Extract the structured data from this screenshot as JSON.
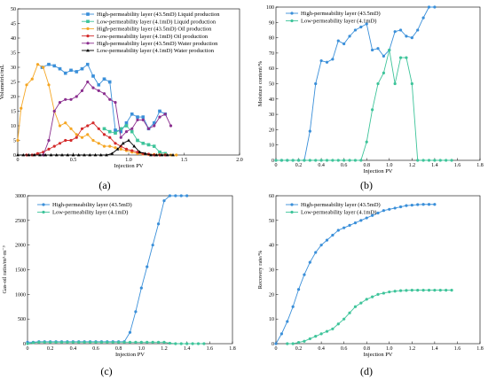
{
  "chart_data": [
    {
      "id": "a",
      "panel_label": "(a)",
      "type": "line",
      "xlabel": "Injection PV",
      "ylabel": "Volumetric/mL",
      "xlim": [
        0,
        2.0
      ],
      "ylim": [
        0,
        50
      ],
      "xticks": [
        0,
        0.5,
        1.0,
        1.5,
        2.0
      ],
      "xtick_labels": [
        "0",
        "0.5",
        "1.0",
        "1.5",
        "2.0"
      ],
      "yticks": [
        0,
        5,
        10,
        15,
        20,
        25,
        30,
        35,
        40,
        45,
        50
      ],
      "ytick_labels": [
        "0",
        "5",
        "10",
        "15",
        "20",
        "25",
        "30",
        "35",
        "40",
        "45",
        "50"
      ],
      "legend_position": "top-right",
      "series": [
        {
          "name": "High-permeability layer (43.5mD) Liquid production",
          "color": "#3a8fd9",
          "marker": "square",
          "x": [
            0.22,
            0.28,
            0.33,
            0.38,
            0.43,
            0.48,
            0.53,
            0.58,
            0.63,
            0.68,
            0.73,
            0.78,
            0.83,
            0.88,
            0.93,
            0.98,
            1.03,
            1.08,
            1.13,
            1.18,
            1.23,
            1.28,
            1.33
          ],
          "y": [
            30,
            31,
            30.5,
            29.5,
            28,
            29,
            28.5,
            29.5,
            31,
            27,
            24,
            26,
            25,
            8.5,
            8,
            11,
            14,
            13,
            13,
            9,
            11,
            15,
            14
          ]
        },
        {
          "name": "Low-permeability layer (4.1mD) Liquid production",
          "color": "#3ec49a",
          "marker": "square",
          "x": [
            0.78,
            0.83,
            0.88,
            0.93,
            0.98,
            1.03,
            1.08,
            1.13,
            1.18,
            1.23,
            1.28,
            1.33
          ],
          "y": [
            9,
            8,
            7.5,
            9,
            10,
            8,
            5,
            4,
            3.5,
            3,
            1,
            0.5
          ]
        },
        {
          "name": "High-permeability layer (43.5mD) Oil production",
          "color": "#f5a623",
          "marker": "circle",
          "x": [
            0.0,
            0.03,
            0.08,
            0.13,
            0.18,
            0.23,
            0.28,
            0.33,
            0.38,
            0.43,
            0.48,
            0.53,
            0.58,
            0.63,
            0.68,
            0.73,
            0.78,
            0.83,
            0.88,
            0.93,
            0.98,
            1.03,
            1.08,
            1.13,
            1.18,
            1.23,
            1.28,
            1.33,
            1.38,
            1.43
          ],
          "y": [
            5,
            16,
            24,
            26,
            31,
            30,
            24,
            15,
            10,
            11,
            9,
            7,
            6,
            7,
            5,
            4,
            3,
            3,
            2.5,
            2,
            1.5,
            1,
            0.5,
            0.3,
            0.2,
            0.2,
            0.1,
            0.1,
            0,
            0
          ]
        },
        {
          "name": "Low-permeability layer (4.1mD) Oil production",
          "color": "#d42b2b",
          "marker": "circle",
          "x": [
            0.08,
            0.13,
            0.18,
            0.23,
            0.28,
            0.33,
            0.38,
            0.43,
            0.48,
            0.53,
            0.58,
            0.63,
            0.68,
            0.73,
            0.78,
            0.83,
            0.88,
            0.93,
            0.98,
            1.03,
            1.08,
            1.13,
            1.18,
            1.23,
            1.28,
            1.33
          ],
          "y": [
            0,
            0,
            0.5,
            1,
            2,
            3,
            4,
            5,
            5,
            6,
            9,
            10,
            11,
            9,
            7,
            6,
            4,
            3,
            2,
            1.5,
            1,
            0.5,
            0.3,
            0,
            0,
            0
          ]
        },
        {
          "name": "High-permeability layer (43.5mD) Water production",
          "color": "#8b2f8f",
          "marker": "circle",
          "x": [
            0.23,
            0.28,
            0.33,
            0.38,
            0.43,
            0.48,
            0.53,
            0.58,
            0.63,
            0.68,
            0.73,
            0.78,
            0.83,
            0.88,
            0.93,
            0.98,
            1.03,
            1.08,
            1.13,
            1.18,
            1.23,
            1.28,
            1.33,
            1.38
          ],
          "y": [
            0,
            5,
            15,
            18,
            19,
            19,
            20,
            22,
            25,
            23,
            22,
            21,
            19,
            18,
            6,
            8,
            9,
            12,
            12,
            9,
            10,
            13,
            14,
            10
          ]
        },
        {
          "name": "Low-permeability layer (4.1mD) Water production",
          "color": "#000000",
          "marker": "triangle",
          "x": [
            0.0,
            0.05,
            0.1,
            0.15,
            0.2,
            0.25,
            0.3,
            0.35,
            0.4,
            0.45,
            0.5,
            0.55,
            0.6,
            0.65,
            0.7,
            0.75,
            0.8,
            0.85,
            0.9,
            0.95,
            1.0,
            1.05,
            1.1,
            1.15,
            1.2,
            1.25,
            1.3,
            1.35,
            1.4
          ],
          "y": [
            0,
            0,
            0,
            0,
            0,
            0,
            0,
            0,
            0,
            0,
            0,
            0,
            0,
            0,
            0,
            0,
            0,
            0.5,
            2,
            4,
            5,
            3,
            1,
            0.5,
            0,
            0,
            0,
            0,
            0
          ]
        }
      ]
    },
    {
      "id": "b",
      "panel_label": "(b)",
      "type": "line",
      "xlabel": "Injection PV",
      "ylabel": "Moisture content/%",
      "xlim": [
        0,
        1.8
      ],
      "ylim": [
        0,
        100
      ],
      "xticks": [
        0,
        0.2,
        0.4,
        0.6,
        0.8,
        1.0,
        1.2,
        1.4,
        1.6,
        1.8
      ],
      "xtick_labels": [
        "0",
        "0.2",
        "0.4",
        "0.6",
        "0.8",
        "1.0",
        "1.2",
        "1.4",
        "1.6",
        "1.8"
      ],
      "yticks": [
        0,
        10,
        20,
        30,
        40,
        50,
        60,
        70,
        80,
        90,
        100
      ],
      "ytick_labels": [
        "0",
        "10",
        "20",
        "30",
        "40",
        "50",
        "60",
        "70",
        "80",
        "90",
        "100"
      ],
      "legend_position": "top-left",
      "series": [
        {
          "name": "High-permeability layer (43.5mD)",
          "color": "#3a8fd9",
          "marker": "circle",
          "x": [
            0.0,
            0.05,
            0.1,
            0.15,
            0.2,
            0.25,
            0.3,
            0.35,
            0.4,
            0.45,
            0.5,
            0.55,
            0.6,
            0.65,
            0.7,
            0.75,
            0.8,
            0.85,
            0.9,
            0.95,
            1.0,
            1.05,
            1.1,
            1.15,
            1.2,
            1.25,
            1.3,
            1.35,
            1.4
          ],
          "y": [
            0,
            0,
            0,
            0,
            0,
            0,
            19,
            50,
            65,
            64,
            66,
            78,
            76,
            81,
            85,
            87,
            89,
            72,
            73,
            68,
            72,
            84,
            85,
            81,
            80,
            85,
            93,
            100,
            100
          ]
        },
        {
          "name": "Low-permeability layer (4.1mD)",
          "color": "#3ec49a",
          "marker": "circle",
          "x": [
            0.0,
            0.05,
            0.1,
            0.15,
            0.2,
            0.25,
            0.3,
            0.35,
            0.4,
            0.45,
            0.5,
            0.55,
            0.6,
            0.65,
            0.7,
            0.75,
            0.8,
            0.85,
            0.9,
            0.95,
            1.0,
            1.05,
            1.1,
            1.15,
            1.2,
            1.25,
            1.3,
            1.35,
            1.4,
            1.45,
            1.5,
            1.55
          ],
          "y": [
            0,
            0,
            0,
            0,
            0,
            0,
            0,
            0,
            0,
            0,
            0,
            0,
            0,
            0,
            0,
            0,
            12,
            33,
            50,
            57,
            72,
            50,
            67,
            67,
            50,
            0,
            0,
            0,
            0,
            0,
            0,
            0
          ]
        }
      ]
    },
    {
      "id": "c",
      "panel_label": "(c)",
      "type": "line",
      "xlabel": "Injection PV",
      "ylabel": "Gas-oil ratio/m³·m⁻³",
      "xlim": [
        0,
        1.8
      ],
      "ylim": [
        0,
        3000
      ],
      "xticks": [
        0,
        0.2,
        0.4,
        0.6,
        0.8,
        1.0,
        1.2,
        1.4,
        1.6,
        1.8
      ],
      "xtick_labels": [
        "0",
        "0.2",
        "0.4",
        "0.6",
        "0.8",
        "1.0",
        "1.2",
        "1.4",
        "1.6",
        "1.8"
      ],
      "yticks": [
        0,
        500,
        1000,
        1500,
        2000,
        2500,
        3000
      ],
      "ytick_labels": [
        "0",
        "500",
        "1000",
        "1500",
        "2000",
        "2500",
        "3000"
      ],
      "legend_position": "top-left",
      "series": [
        {
          "name": "High-permeability layer (43.5mD)",
          "color": "#3a8fd9",
          "marker": "circle",
          "x": [
            0.0,
            0.05,
            0.1,
            0.15,
            0.2,
            0.25,
            0.3,
            0.35,
            0.4,
            0.45,
            0.5,
            0.55,
            0.6,
            0.65,
            0.7,
            0.75,
            0.8,
            0.85,
            0.9,
            0.95,
            1.0,
            1.05,
            1.1,
            1.15,
            1.2,
            1.25,
            1.3,
            1.35,
            1.4
          ],
          "y": [
            30,
            30,
            40,
            40,
            40,
            40,
            40,
            40,
            40,
            40,
            40,
            40,
            40,
            40,
            40,
            40,
            40,
            40,
            230,
            650,
            1130,
            1560,
            2000,
            2430,
            2900,
            3000,
            3000,
            3000,
            3000
          ]
        },
        {
          "name": "Low-permeability layer (4.1mD)",
          "color": "#3ec49a",
          "marker": "circle",
          "x": [
            0.0,
            0.05,
            0.1,
            0.15,
            0.2,
            0.25,
            0.3,
            0.35,
            0.4,
            0.45,
            0.5,
            0.55,
            0.6,
            0.65,
            0.7,
            0.75,
            0.8,
            0.85,
            0.9,
            0.95,
            1.0,
            1.05,
            1.1,
            1.15,
            1.2,
            1.25,
            1.3,
            1.35,
            1.4,
            1.45,
            1.5,
            1.55
          ],
          "y": [
            0,
            20,
            30,
            30,
            30,
            30,
            30,
            30,
            30,
            30,
            30,
            30,
            30,
            30,
            30,
            30,
            30,
            30,
            30,
            30,
            30,
            30,
            30,
            30,
            30,
            10,
            0,
            0,
            0,
            0,
            0,
            0
          ]
        }
      ]
    },
    {
      "id": "d",
      "panel_label": "(d)",
      "type": "line",
      "xlabel": "Injection PV",
      "ylabel": "Recovery rate/%",
      "xlim": [
        0,
        1.8
      ],
      "ylim": [
        0,
        60
      ],
      "xticks": [
        0,
        0.2,
        0.4,
        0.6,
        0.8,
        1.0,
        1.2,
        1.4,
        1.6,
        1.8
      ],
      "xtick_labels": [
        "0",
        "0.2",
        "0.4",
        "0.6",
        "0.8",
        "1.0",
        "1.2",
        "1.4",
        "1.6",
        "1.8"
      ],
      "yticks": [
        0,
        10,
        20,
        30,
        40,
        50,
        60
      ],
      "ytick_labels": [
        "0",
        "10",
        "20",
        "30",
        "40",
        "50",
        "60"
      ],
      "legend_position": "top-left",
      "series": [
        {
          "name": "High-permeability layer (43.5mD)",
          "color": "#3a8fd9",
          "marker": "circle",
          "x": [
            0.0,
            0.05,
            0.1,
            0.15,
            0.2,
            0.25,
            0.3,
            0.35,
            0.4,
            0.45,
            0.5,
            0.55,
            0.6,
            0.65,
            0.7,
            0.75,
            0.8,
            0.85,
            0.9,
            0.95,
            1.0,
            1.05,
            1.1,
            1.15,
            1.2,
            1.25,
            1.3,
            1.35,
            1.4
          ],
          "y": [
            0,
            4,
            9,
            15,
            22,
            28,
            33,
            37,
            40,
            42,
            44,
            46,
            47,
            48,
            49,
            50,
            51,
            52,
            53,
            54,
            54.5,
            55,
            55.5,
            56,
            56.2,
            56.4,
            56.5,
            56.5,
            56.5
          ]
        },
        {
          "name": "Low-permeability layer (4.1mD)",
          "color": "#3ec49a",
          "marker": "circle",
          "x": [
            0.1,
            0.15,
            0.2,
            0.25,
            0.3,
            0.35,
            0.4,
            0.45,
            0.5,
            0.55,
            0.6,
            0.65,
            0.7,
            0.75,
            0.8,
            0.85,
            0.9,
            0.95,
            1.0,
            1.05,
            1.1,
            1.15,
            1.2,
            1.25,
            1.3,
            1.35,
            1.4,
            1.45,
            1.5,
            1.55
          ],
          "y": [
            0,
            0,
            0.5,
            1,
            2,
            3,
            4,
            5,
            6,
            8,
            10,
            12.5,
            15,
            16.5,
            18,
            19,
            20,
            20.5,
            21,
            21.3,
            21.5,
            21.6,
            21.7,
            21.7,
            21.7,
            21.7,
            21.7,
            21.7,
            21.7,
            21.7
          ]
        }
      ]
    }
  ]
}
